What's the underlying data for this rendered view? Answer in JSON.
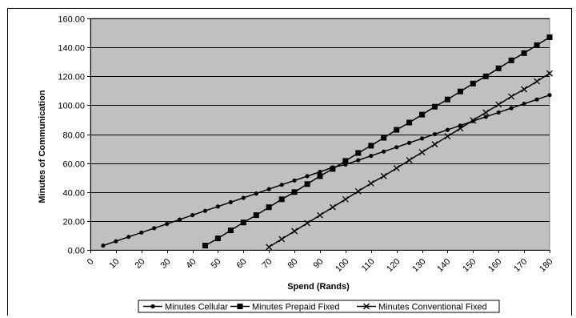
{
  "chart_data": {
    "type": "line",
    "xlabel": "Spend (Rands)",
    "ylabel": "Minutes of Communication",
    "xlim": [
      0,
      180
    ],
    "ylim": [
      0,
      160
    ],
    "x_ticks": [
      0,
      10,
      20,
      30,
      40,
      50,
      60,
      70,
      80,
      90,
      100,
      110,
      120,
      130,
      140,
      150,
      160,
      170,
      180
    ],
    "x_tick_labels": [
      "0",
      "10",
      "20",
      "30",
      "40",
      "50",
      "60",
      "70",
      "80",
      "90",
      "100",
      "110",
      "120",
      "130",
      "140",
      "150",
      "160",
      "170",
      "180"
    ],
    "y_ticks": [
      0,
      20,
      40,
      60,
      80,
      100,
      120,
      140,
      160
    ],
    "y_tick_labels": [
      "0.00",
      "20.00",
      "40.00",
      "60.00",
      "80.00",
      "100.00",
      "120.00",
      "140.00",
      "160.00"
    ],
    "grid": "horizontal",
    "plot_background": "#c0c0c0",
    "legend_position": "bottom",
    "series": [
      {
        "name": "Minutes Cellular",
        "marker": "circle",
        "color": "#000000",
        "x": [
          5,
          10,
          15,
          20,
          25,
          30,
          35,
          40,
          45,
          50,
          55,
          60,
          65,
          70,
          75,
          80,
          85,
          90,
          95,
          100,
          105,
          110,
          115,
          120,
          125,
          130,
          135,
          140,
          145,
          150,
          155,
          160,
          165,
          170,
          175,
          180
        ],
        "y": [
          3,
          6,
          9,
          12,
          15,
          18,
          21,
          24,
          27,
          30,
          33,
          36,
          39,
          42,
          45,
          48,
          51,
          54,
          57,
          59,
          62,
          65,
          68,
          71,
          74,
          77,
          80,
          83,
          86,
          89,
          92,
          95,
          98,
          101,
          104,
          107
        ]
      },
      {
        "name": "Minutes Prepaid Fixed",
        "marker": "square",
        "color": "#000000",
        "x": [
          45,
          50,
          55,
          60,
          65,
          70,
          75,
          80,
          85,
          90,
          95,
          100,
          105,
          110,
          115,
          120,
          125,
          130,
          135,
          140,
          145,
          150,
          155,
          160,
          165,
          170,
          175,
          180
        ],
        "y": [
          3,
          8,
          13.5,
          19,
          24,
          29.5,
          35,
          40,
          45.5,
          51,
          56,
          61.5,
          67,
          72,
          77.5,
          83,
          88,
          93.5,
          99,
          104,
          109.5,
          115,
          120,
          125.5,
          131,
          136,
          141.5,
          147
        ]
      },
      {
        "name": "Minutes Conventional Fixed",
        "marker": "x",
        "color": "#000000",
        "x": [
          70,
          75,
          80,
          85,
          90,
          95,
          100,
          105,
          110,
          115,
          120,
          125,
          130,
          135,
          140,
          145,
          150,
          155,
          160,
          165,
          170,
          175,
          180
        ],
        "y": [
          2,
          7.5,
          13,
          18.5,
          24,
          29.5,
          35,
          40.5,
          46,
          51,
          56.5,
          62,
          67.5,
          73,
          78.5,
          84,
          89.5,
          95,
          100.5,
          106,
          111,
          116.5,
          122
        ]
      }
    ]
  }
}
